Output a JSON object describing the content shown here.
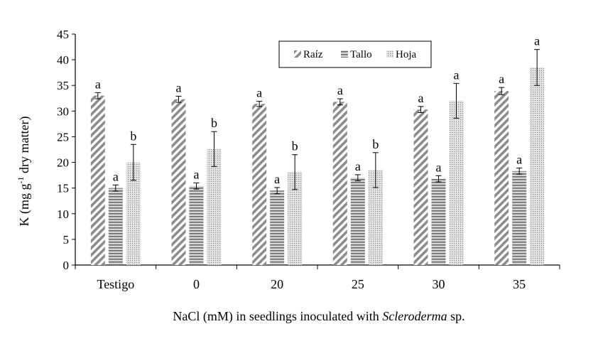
{
  "chart_data": {
    "type": "bar",
    "title": "",
    "ylabel": "K (mg g-1 dry matter)",
    "ylabel_parts": {
      "main": "K (mg g",
      "sup": "-1",
      "rest": " dry matter)"
    },
    "xlabel": "NaCl (mM) in seedlings inoculated with Scleroderma sp.",
    "xlabel_parts": {
      "pre": "NaCl (mM) in seedlings inoculated with ",
      "ital": "Scleroderma",
      "post": " sp."
    },
    "ylim": [
      0,
      45
    ],
    "yticks": [
      0,
      5,
      10,
      15,
      20,
      25,
      30,
      35,
      40,
      45
    ],
    "grid": false,
    "legend_position": "top-center",
    "categories": [
      "Testigo",
      "0",
      "20",
      "25",
      "30",
      "35"
    ],
    "series": [
      {
        "name": "Raíz",
        "pattern": "diagonal",
        "values": [
          33.0,
          32.3,
          31.4,
          31.8,
          30.3,
          33.9
        ],
        "errors": [
          0.6,
          0.6,
          0.5,
          0.6,
          0.6,
          0.7
        ],
        "letters": [
          "a",
          "a",
          "a",
          "a",
          "a",
          "a"
        ]
      },
      {
        "name": "Tallo",
        "pattern": "horizontal",
        "values": [
          15.0,
          15.4,
          14.5,
          17.0,
          16.8,
          18.3
        ],
        "errors": [
          0.6,
          0.6,
          0.6,
          0.6,
          0.6,
          0.6
        ],
        "letters": [
          "a",
          "a",
          "a",
          "a",
          "a",
          "a"
        ]
      },
      {
        "name": "Hoja",
        "pattern": "dotted",
        "values": [
          20.0,
          22.6,
          18.1,
          18.5,
          32.0,
          38.5
        ],
        "errors": [
          3.5,
          3.4,
          3.4,
          3.4,
          3.4,
          3.5
        ],
        "letters": [
          "b",
          "b",
          "b",
          "b",
          "a",
          "a"
        ]
      }
    ]
  }
}
